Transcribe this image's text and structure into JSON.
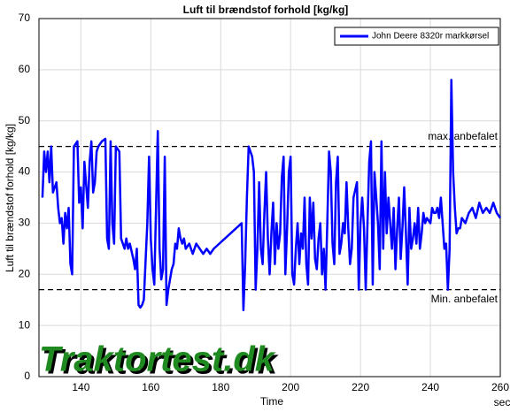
{
  "chart_data": {
    "type": "line",
    "title": "Luft til brændstof forhold [kg/kg]",
    "x_label": "Time",
    "x_unit": "sec",
    "y_label": "Luft til brændstof forhold [kg/kg]",
    "watermark": "Traktortest.dk",
    "xlim": [
      128,
      260
    ],
    "xticks": [
      140,
      160,
      180,
      200,
      220,
      240,
      260
    ],
    "ylim": [
      0,
      70
    ],
    "yticks": [
      0,
      10,
      20,
      30,
      40,
      50,
      60,
      70
    ],
    "grid": true,
    "legend": "top-right",
    "reference_lines": [
      {
        "value": 45,
        "label": "max. anbefalet",
        "color": "#000000"
      },
      {
        "value": 17,
        "label": "Min. anbefalet",
        "color": "#000000"
      }
    ],
    "x": [
      129,
      129.5,
      130,
      130.5,
      131,
      131.5,
      132,
      133,
      133.5,
      134,
      134.5,
      135,
      135.5,
      136,
      136.5,
      137,
      137.5,
      138,
      139,
      139.5,
      140,
      140.5,
      141,
      142,
      142.5,
      143,
      143.5,
      144,
      144.5,
      145,
      146,
      147,
      147.5,
      148,
      148.5,
      149,
      149.5,
      150,
      151,
      151.5,
      152,
      152.5,
      153,
      153.5,
      154,
      155,
      155.5,
      156,
      156.5,
      157,
      157.5,
      158,
      159,
      159.5,
      160,
      160.5,
      161,
      161.5,
      162,
      162.5,
      163,
      163.5,
      164,
      164.5,
      165,
      165.5,
      166,
      166.5,
      167,
      167.5,
      168,
      168.5,
      169,
      169.5,
      170,
      171,
      172,
      173,
      174,
      175,
      176,
      177,
      178,
      186,
      186.5,
      187,
      187.5,
      188,
      189,
      189.5,
      190,
      190.5,
      191,
      191.5,
      192,
      192.5,
      193,
      193.5,
      194,
      194.5,
      195,
      195.5,
      196,
      196.5,
      197,
      197.5,
      198,
      198.5,
      199,
      199.5,
      200,
      200.5,
      201,
      201.5,
      202,
      202.5,
      203,
      203.5,
      204,
      204.5,
      205,
      205.5,
      206,
      206.5,
      207,
      207.5,
      208,
      208.5,
      209,
      209.5,
      210,
      210.5,
      211,
      211.5,
      212,
      212.5,
      213,
      213.5,
      214,
      214.5,
      215,
      215.5,
      216,
      216.5,
      217,
      217.5,
      218,
      219,
      219.5,
      220,
      220.5,
      221,
      221.5,
      222,
      222.5,
      223,
      223.5,
      224,
      225,
      225.5,
      226,
      226.5,
      227,
      227.5,
      228,
      228.5,
      229,
      229.5,
      230,
      230.5,
      231,
      231.5,
      232,
      232.5,
      233,
      233.5,
      234,
      234.5,
      235,
      235.5,
      236,
      236.5,
      237,
      237.5,
      238,
      238.5,
      239,
      240,
      240.5,
      241,
      241.5,
      242,
      242.5,
      243,
      243.5,
      244,
      244.5,
      245,
      245.5,
      246,
      246.5,
      247,
      247.5,
      248,
      248.5,
      249,
      250,
      251,
      252,
      253,
      254,
      255,
      256,
      257,
      258,
      259,
      260
    ],
    "series": [
      {
        "name": "John Deere 8320r markkørsel",
        "color": "#0000ff",
        "values": [
          35,
          44,
          40,
          44,
          38,
          45,
          36,
          38,
          33,
          30,
          31,
          26,
          32,
          29,
          33,
          22,
          20,
          45,
          46,
          34,
          37,
          29,
          42,
          33,
          42,
          46,
          36,
          38,
          44,
          45,
          46,
          46.5,
          27,
          25,
          46,
          30,
          26,
          45,
          44,
          27,
          26,
          25,
          27,
          25,
          26,
          23,
          21,
          25,
          14,
          13.5,
          14,
          15,
          30,
          43,
          27,
          21,
          18,
          33,
          48,
          25,
          19,
          21,
          43,
          14,
          17,
          19,
          21,
          22,
          26,
          25,
          29,
          27,
          26,
          27,
          25,
          26,
          24,
          26,
          25,
          24,
          25,
          24,
          25,
          30,
          13,
          22,
          35,
          45,
          43,
          40,
          17,
          25,
          38,
          25,
          22,
          32,
          40,
          27,
          20,
          28,
          34,
          22,
          30,
          25,
          28,
          39,
          43,
          20,
          29,
          40,
          43,
          20,
          18,
          25,
          30,
          22,
          28,
          25,
          35,
          22,
          18,
          35,
          27,
          34,
          23,
          21,
          27,
          30,
          20,
          25,
          17,
          30,
          44,
          40,
          26,
          22,
          38,
          43,
          24,
          26,
          30,
          28,
          38,
          29,
          22,
          25,
          35,
          38,
          17,
          30,
          35,
          29,
          17,
          30,
          42,
          46,
          18,
          40,
          30,
          21,
          46,
          25,
          40,
          28,
          35,
          30,
          25,
          33,
          21,
          29,
          35,
          23,
          29,
          37,
          28,
          18,
          33,
          25,
          27,
          30,
          26,
          33,
          25,
          28,
          32,
          30,
          31,
          30,
          33,
          32,
          32,
          33,
          31,
          35,
          30,
          25,
          26,
          17,
          25,
          58,
          40,
          33,
          28,
          29,
          29,
          31,
          30,
          32,
          33,
          31,
          34,
          32,
          33,
          32,
          34,
          32,
          31
        ]
      }
    ]
  }
}
